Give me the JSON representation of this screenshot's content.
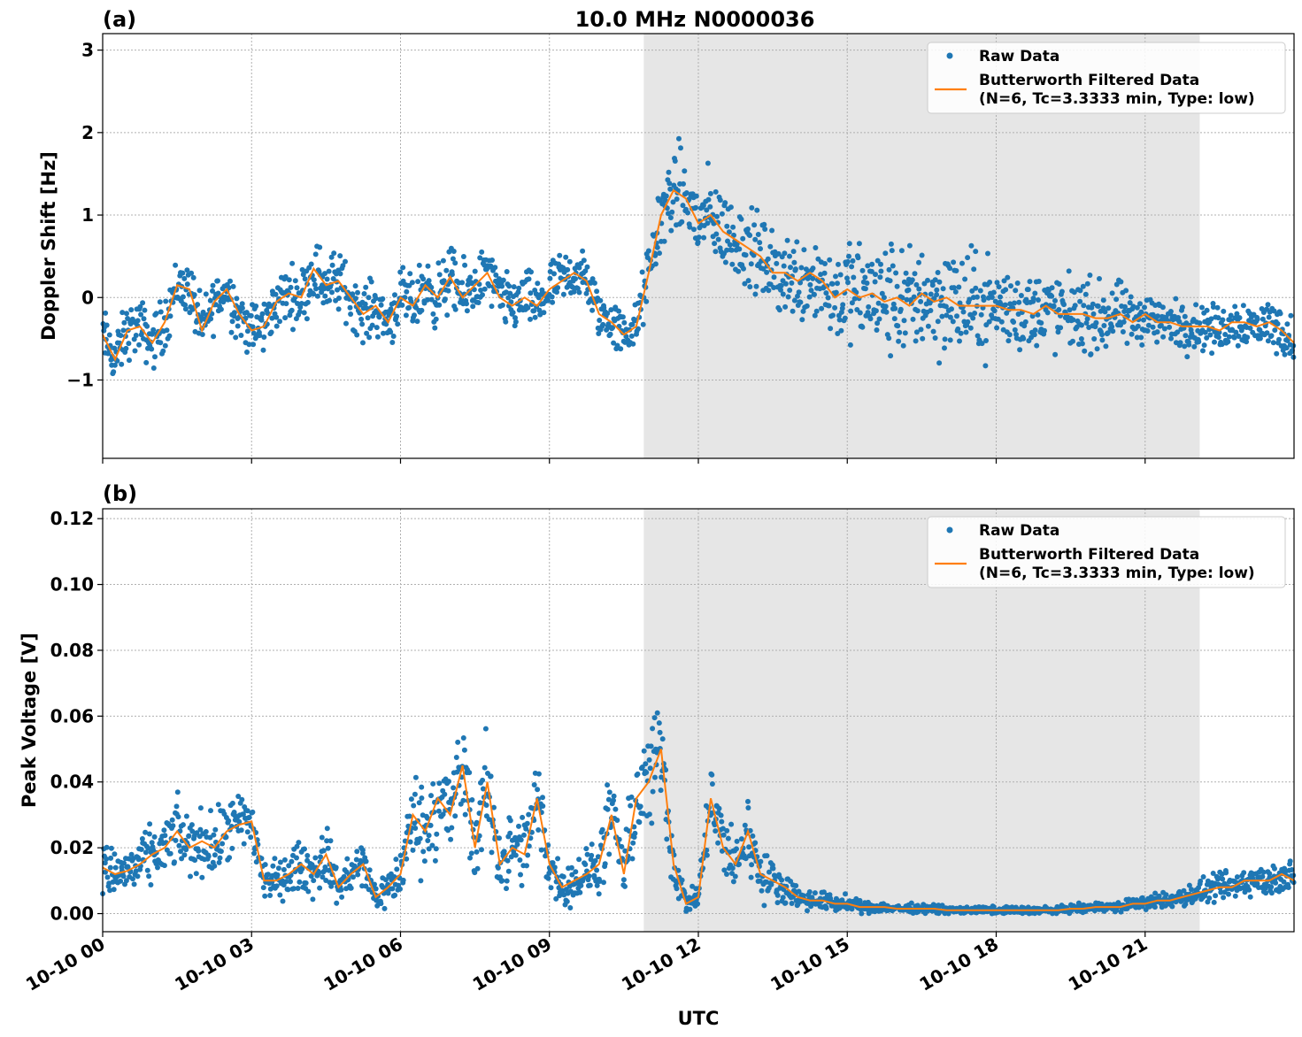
{
  "figure": {
    "title": "10.0 MHz N0000036",
    "xlabel": "UTC"
  },
  "colors": {
    "raw": "#1f77b4",
    "filtered": "#ff7f0e",
    "shade": "#e6e6e6"
  },
  "chart_data": [
    {
      "type": "scatter",
      "panel_label": "(a)",
      "ylabel": "Doppler Shift [Hz]",
      "xlim": [
        0,
        24
      ],
      "ylim": [
        -1.95,
        3.2
      ],
      "x_ticks": [
        0,
        3,
        6,
        9,
        12,
        15,
        18,
        21
      ],
      "x_tick_labels": [
        "10-10 00",
        "10-10 03",
        "10-10 06",
        "10-10 09",
        "10-10 12",
        "10-10 15",
        "10-10 18",
        "10-10 21"
      ],
      "y_ticks": [
        -1,
        0,
        1,
        2,
        3
      ],
      "y_tick_labels": [
        "−1",
        "0",
        "1",
        "2",
        "3"
      ],
      "shaded_interval_hours": [
        10.9,
        22.1
      ],
      "grid": true,
      "legend": {
        "position": "top-right",
        "raw_label": "Raw Data",
        "filtered_label_line1": "Butterworth Filtered Data",
        "filtered_label_line2": "(N=6, Tc=3.3333 min, Type: low)"
      },
      "series": [
        {
          "name": "Butterworth Filtered Data",
          "x": [
            0,
            0.25,
            0.5,
            0.75,
            1,
            1.25,
            1.5,
            1.75,
            2,
            2.25,
            2.5,
            2.75,
            3,
            3.25,
            3.5,
            3.75,
            4,
            4.25,
            4.5,
            4.75,
            5,
            5.25,
            5.5,
            5.75,
            6,
            6.25,
            6.5,
            6.75,
            7,
            7.25,
            7.5,
            7.75,
            8,
            8.25,
            8.5,
            8.75,
            9,
            9.25,
            9.5,
            9.75,
            10,
            10.25,
            10.5,
            10.75,
            11,
            11.25,
            11.5,
            11.75,
            12,
            12.25,
            12.5,
            12.75,
            13,
            13.25,
            13.5,
            13.75,
            14,
            14.25,
            14.5,
            14.75,
            15,
            15.25,
            15.5,
            15.75,
            16,
            16.25,
            16.5,
            16.75,
            17,
            17.25,
            17.5,
            17.75,
            18,
            18.25,
            18.5,
            18.75,
            19,
            19.25,
            19.5,
            19.75,
            20,
            20.25,
            20.5,
            20.75,
            21,
            21.25,
            21.5,
            21.75,
            22,
            22.25,
            22.5,
            22.75,
            23,
            23.25,
            23.5,
            23.75,
            24
          ],
          "values": [
            -0.45,
            -0.75,
            -0.4,
            -0.35,
            -0.55,
            -0.3,
            0.15,
            0.1,
            -0.4,
            -0.05,
            0.1,
            -0.2,
            -0.4,
            -0.35,
            -0.05,
            0.05,
            0.0,
            0.35,
            0.15,
            0.2,
            0.0,
            -0.2,
            -0.1,
            -0.3,
            0.0,
            -0.1,
            0.15,
            0.0,
            0.25,
            0.0,
            0.15,
            0.3,
            0.0,
            -0.1,
            0.0,
            -0.1,
            0.1,
            0.2,
            0.3,
            0.2,
            -0.2,
            -0.3,
            -0.45,
            -0.35,
            0.3,
            1.0,
            1.3,
            1.2,
            0.9,
            1.0,
            0.8,
            0.7,
            0.6,
            0.5,
            0.3,
            0.3,
            0.2,
            0.3,
            0.2,
            0.0,
            0.1,
            0.0,
            0.05,
            -0.05,
            0.0,
            -0.1,
            0.05,
            -0.05,
            0.0,
            -0.1,
            -0.1,
            -0.1,
            -0.1,
            -0.15,
            -0.15,
            -0.2,
            -0.1,
            -0.2,
            -0.2,
            -0.2,
            -0.25,
            -0.25,
            -0.2,
            -0.3,
            -0.2,
            -0.3,
            -0.3,
            -0.35,
            -0.35,
            -0.35,
            -0.4,
            -0.3,
            -0.3,
            -0.35,
            -0.3,
            -0.4,
            -0.55
          ]
        },
        {
          "name": "Raw Data",
          "scatter_halfwidth": [
            0.35,
            0.35,
            0.35,
            0.35,
            0.35,
            0.35,
            0.35,
            0.35,
            0.35,
            0.35,
            0.35,
            0.35,
            0.35,
            0.35,
            0.35,
            0.35,
            0.35,
            0.4,
            0.4,
            0.4,
            0.35,
            0.35,
            0.35,
            0.35,
            0.35,
            0.35,
            0.4,
            0.4,
            0.4,
            0.4,
            0.4,
            0.35,
            0.35,
            0.35,
            0.35,
            0.35,
            0.35,
            0.35,
            0.35,
            0.35,
            0.3,
            0.3,
            0.3,
            0.3,
            0.4,
            0.5,
            0.55,
            0.55,
            0.55,
            0.55,
            0.5,
            0.5,
            0.5,
            0.5,
            0.5,
            0.55,
            0.55,
            0.6,
            0.6,
            0.6,
            0.65,
            0.65,
            0.7,
            0.75,
            0.75,
            0.7,
            0.7,
            0.7,
            0.7,
            0.7,
            0.65,
            0.6,
            0.6,
            0.55,
            0.55,
            0.5,
            0.5,
            0.5,
            0.45,
            0.45,
            0.45,
            0.4,
            0.4,
            0.35,
            0.35,
            0.3,
            0.3,
            0.3,
            0.3,
            0.3,
            0.3,
            0.3,
            0.3,
            0.3,
            0.3,
            0.3,
            0.3
          ]
        }
      ]
    },
    {
      "type": "scatter",
      "panel_label": "(b)",
      "ylabel": "Peak Voltage [V]",
      "xlim": [
        0,
        24
      ],
      "ylim": [
        -0.0055,
        0.123
      ],
      "x_ticks": [
        0,
        3,
        6,
        9,
        12,
        15,
        18,
        21
      ],
      "x_tick_labels": [
        "10-10 00",
        "10-10 03",
        "10-10 06",
        "10-10 09",
        "10-10 12",
        "10-10 15",
        "10-10 18",
        "10-10 21"
      ],
      "y_ticks": [
        0.0,
        0.02,
        0.04,
        0.06,
        0.08,
        0.1,
        0.12
      ],
      "y_tick_labels": [
        "0.00",
        "0.02",
        "0.04",
        "0.06",
        "0.08",
        "0.10",
        "0.12"
      ],
      "shaded_interval_hours": [
        10.9,
        22.1
      ],
      "grid": true,
      "legend": {
        "position": "top-right",
        "raw_label": "Raw Data",
        "filtered_label_line1": "Butterworth Filtered Data",
        "filtered_label_line2": "(N=6, Tc=3.3333 min, Type: low)"
      },
      "series": [
        {
          "name": "Butterworth Filtered Data",
          "x": [
            0,
            0.25,
            0.5,
            0.75,
            1,
            1.25,
            1.5,
            1.75,
            2,
            2.25,
            2.5,
            2.75,
            3,
            3.25,
            3.5,
            3.75,
            4,
            4.25,
            4.5,
            4.75,
            5,
            5.25,
            5.5,
            5.75,
            6,
            6.25,
            6.5,
            6.75,
            7,
            7.25,
            7.5,
            7.75,
            8,
            8.25,
            8.5,
            8.75,
            9,
            9.25,
            9.5,
            9.75,
            10,
            10.25,
            10.5,
            10.75,
            11,
            11.25,
            11.5,
            11.75,
            12,
            12.25,
            12.5,
            12.75,
            13,
            13.25,
            13.5,
            13.75,
            14,
            14.25,
            14.5,
            14.75,
            15,
            15.25,
            15.5,
            15.75,
            16,
            16.25,
            16.5,
            16.75,
            17,
            17.25,
            17.5,
            17.75,
            18,
            18.25,
            18.5,
            18.75,
            19,
            19.25,
            19.5,
            19.75,
            20,
            20.25,
            20.5,
            20.75,
            21,
            21.25,
            21.5,
            21.75,
            22,
            22.25,
            22.5,
            22.75,
            23,
            23.25,
            23.5,
            23.75,
            24
          ],
          "values": [
            0.014,
            0.012,
            0.013,
            0.015,
            0.018,
            0.02,
            0.025,
            0.02,
            0.022,
            0.02,
            0.025,
            0.027,
            0.028,
            0.01,
            0.01,
            0.012,
            0.015,
            0.012,
            0.018,
            0.008,
            0.012,
            0.015,
            0.005,
            0.008,
            0.012,
            0.03,
            0.025,
            0.035,
            0.03,
            0.045,
            0.02,
            0.04,
            0.015,
            0.02,
            0.018,
            0.035,
            0.015,
            0.008,
            0.01,
            0.012,
            0.015,
            0.03,
            0.012,
            0.035,
            0.04,
            0.05,
            0.015,
            0.003,
            0.005,
            0.035,
            0.02,
            0.015,
            0.025,
            0.012,
            0.01,
            0.008,
            0.005,
            0.004,
            0.004,
            0.003,
            0.003,
            0.002,
            0.002,
            0.002,
            0.0015,
            0.0015,
            0.0015,
            0.0015,
            0.001,
            0.001,
            0.001,
            0.001,
            0.001,
            0.001,
            0.001,
            0.001,
            0.001,
            0.001,
            0.0015,
            0.0015,
            0.002,
            0.002,
            0.002,
            0.003,
            0.003,
            0.004,
            0.004,
            0.005,
            0.006,
            0.007,
            0.008,
            0.008,
            0.01,
            0.01,
            0.01,
            0.012,
            0.01
          ]
        },
        {
          "name": "Raw Data",
          "scatter_halfwidth": [
            0.008,
            0.008,
            0.008,
            0.008,
            0.009,
            0.009,
            0.01,
            0.01,
            0.01,
            0.01,
            0.01,
            0.011,
            0.011,
            0.007,
            0.006,
            0.007,
            0.008,
            0.008,
            0.009,
            0.006,
            0.007,
            0.008,
            0.005,
            0.006,
            0.009,
            0.014,
            0.014,
            0.016,
            0.015,
            0.017,
            0.013,
            0.017,
            0.011,
            0.012,
            0.012,
            0.015,
            0.01,
            0.006,
            0.007,
            0.008,
            0.01,
            0.014,
            0.01,
            0.016,
            0.018,
            0.019,
            0.009,
            0.003,
            0.004,
            0.014,
            0.011,
            0.009,
            0.012,
            0.008,
            0.006,
            0.005,
            0.004,
            0.003,
            0.003,
            0.0025,
            0.0025,
            0.0018,
            0.0018,
            0.0016,
            0.0014,
            0.0014,
            0.0014,
            0.0014,
            0.0012,
            0.0012,
            0.0012,
            0.0012,
            0.0012,
            0.0012,
            0.0012,
            0.0012,
            0.0012,
            0.0012,
            0.0014,
            0.0014,
            0.0016,
            0.0016,
            0.0016,
            0.002,
            0.002,
            0.0025,
            0.0025,
            0.003,
            0.0035,
            0.004,
            0.0045,
            0.0045,
            0.005,
            0.005,
            0.005,
            0.006,
            0.005
          ]
        }
      ]
    }
  ]
}
